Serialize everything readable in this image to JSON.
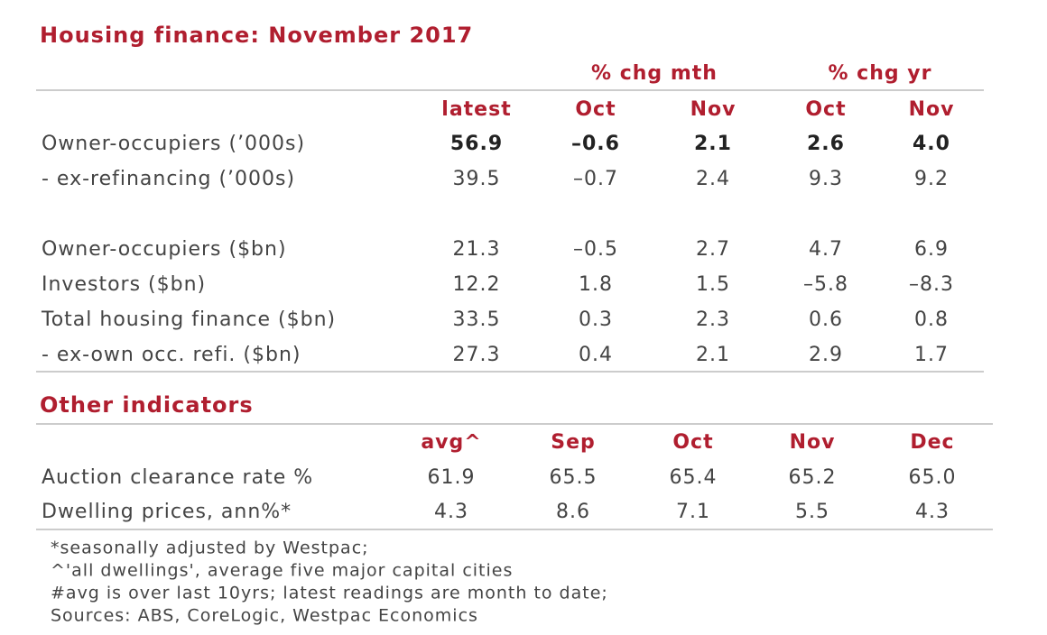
{
  "title": "Housing finance: November 2017",
  "housing": {
    "group_headers": [
      "% chg mth",
      "% chg yr"
    ],
    "columns": [
      "latest",
      "Oct",
      "Nov",
      "Oct",
      "Nov"
    ],
    "rows": [
      {
        "label": "Owner-occupiers (’000s)",
        "cells": [
          "56.9",
          "–0.6",
          "2.1",
          "2.6",
          "4.0"
        ]
      },
      {
        "label": "- ex-refinancing (’000s)",
        "cells": [
          "39.5",
          "–0.7",
          "2.4",
          "9.3",
          "9.2"
        ]
      },
      {
        "label": "Owner-occupiers ($bn)",
        "cells": [
          "21.3",
          "–0.5",
          "2.7",
          "4.7",
          "6.9"
        ]
      },
      {
        "label": "Investors ($bn)",
        "cells": [
          "12.2",
          "1.8",
          "1.5",
          "–5.8",
          "–8.3"
        ]
      },
      {
        "label": "Total housing finance ($bn)",
        "cells": [
          "33.5",
          "0.3",
          "2.3",
          "0.6",
          "0.8"
        ]
      },
      {
        "label": "- ex-own occ. refi. ($bn)",
        "cells": [
          "27.3",
          "0.4",
          "2.1",
          "2.9",
          "1.7"
        ]
      }
    ]
  },
  "other": {
    "title": "Other indicators",
    "columns": [
      "avg^",
      "Sep",
      "Oct",
      "Nov",
      "Dec"
    ],
    "rows": [
      {
        "label": "Auction clearance rate %",
        "cells": [
          "61.9",
          "65.5",
          "65.4",
          "65.2",
          "65.0"
        ]
      },
      {
        "label": "Dwelling prices, ann%*",
        "cells": [
          "4.3",
          "8.6",
          "7.1",
          "5.5",
          "4.3"
        ]
      }
    ]
  },
  "footnotes": [
    "*seasonally adjusted by Westpac;",
    "^'all dwellings', average five major capital cities",
    "#avg is over last 10yrs; latest readings are month to date;",
    "Sources: ABS, CoreLogic, Westpac Economics"
  ]
}
